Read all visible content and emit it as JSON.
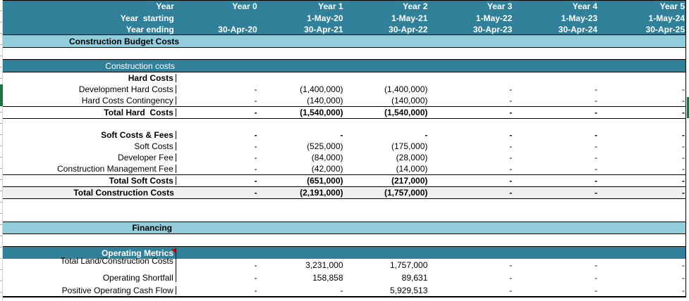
{
  "header": {
    "row_labels": [
      "Year",
      "Year  starting",
      "Year ending"
    ],
    "years": [
      "Year 0",
      "Year 1",
      "Year 2",
      "Year 3",
      "Year 4",
      "Year 5"
    ],
    "starting": [
      "",
      "1-May-20",
      "1-May-21",
      "1-May-22",
      "1-May-23",
      "1-May-24"
    ],
    "ending": [
      "30-Apr-20",
      "30-Apr-21",
      "30-Apr-22",
      "30-Apr-23",
      "30-Apr-24",
      "30-Apr-25"
    ]
  },
  "bands": {
    "construction_budget_costs": "Construction Budget Costs",
    "construction_costs": "Construction costs",
    "financing": "Financing",
    "operating_metrics": "Operating Metrics"
  },
  "rows": [
    {
      "label": "Hard Costs",
      "values": [
        "",
        "",
        "",
        "",
        "",
        ""
      ]
    },
    {
      "label": "Development Hard Costs",
      "values": [
        "-",
        "(1,400,000)",
        "(1,400,000)",
        "-",
        "-",
        "-"
      ]
    },
    {
      "label": "Hard Costs Contingency",
      "values": [
        "-",
        "(140,000)",
        "(140,000)",
        "-",
        "-",
        "-"
      ]
    },
    {
      "label": "Total Hard  Costs",
      "values": [
        "-",
        "(1,540,000)",
        "(1,540,000)",
        "-",
        "-",
        "-"
      ]
    },
    {
      "label": "Soft Costs & Fees",
      "values": [
        "-",
        "-",
        "-",
        "-",
        "-",
        "-"
      ]
    },
    {
      "label": "Soft Costs",
      "values": [
        "-",
        "(525,000)",
        "(175,000)",
        "-",
        "-",
        "-"
      ]
    },
    {
      "label": "Developer Fee",
      "values": [
        "-",
        "(84,000)",
        "(28,000)",
        "-",
        "-",
        "-"
      ]
    },
    {
      "label": "Construction Management Fee",
      "values": [
        "-",
        "(42,000)",
        "(14,000)",
        "-",
        "-",
        "-"
      ]
    },
    {
      "label": "Total Soft Costs",
      "values": [
        "-",
        "(651,000)",
        "(217,000)",
        "-",
        "-",
        "-"
      ]
    },
    {
      "label": "Total Construction Costs",
      "values": [
        "-",
        "(2,191,000)",
        "(1,757,000)",
        "-",
        "-",
        "-"
      ]
    },
    {
      "label": "Total Land/Construction Costs",
      "values": [
        "-",
        "3,231,000",
        "1,757,000",
        "-",
        "-",
        "-"
      ]
    },
    {
      "label": "Operating Shortfall",
      "values": [
        "-",
        "158,858",
        "89,631",
        "-",
        "-",
        "-"
      ]
    },
    {
      "label": "Positive Operating Cash Flow",
      "values": [
        "-",
        "-",
        "5,929,513",
        "-",
        "-",
        "-"
      ]
    }
  ],
  "colors": {
    "teal": "#31809A",
    "light_blue": "#92CDDC",
    "total_row_bg": "#F0F0F0",
    "accent_green": "#1E7145",
    "comment_red": "#C00000"
  }
}
